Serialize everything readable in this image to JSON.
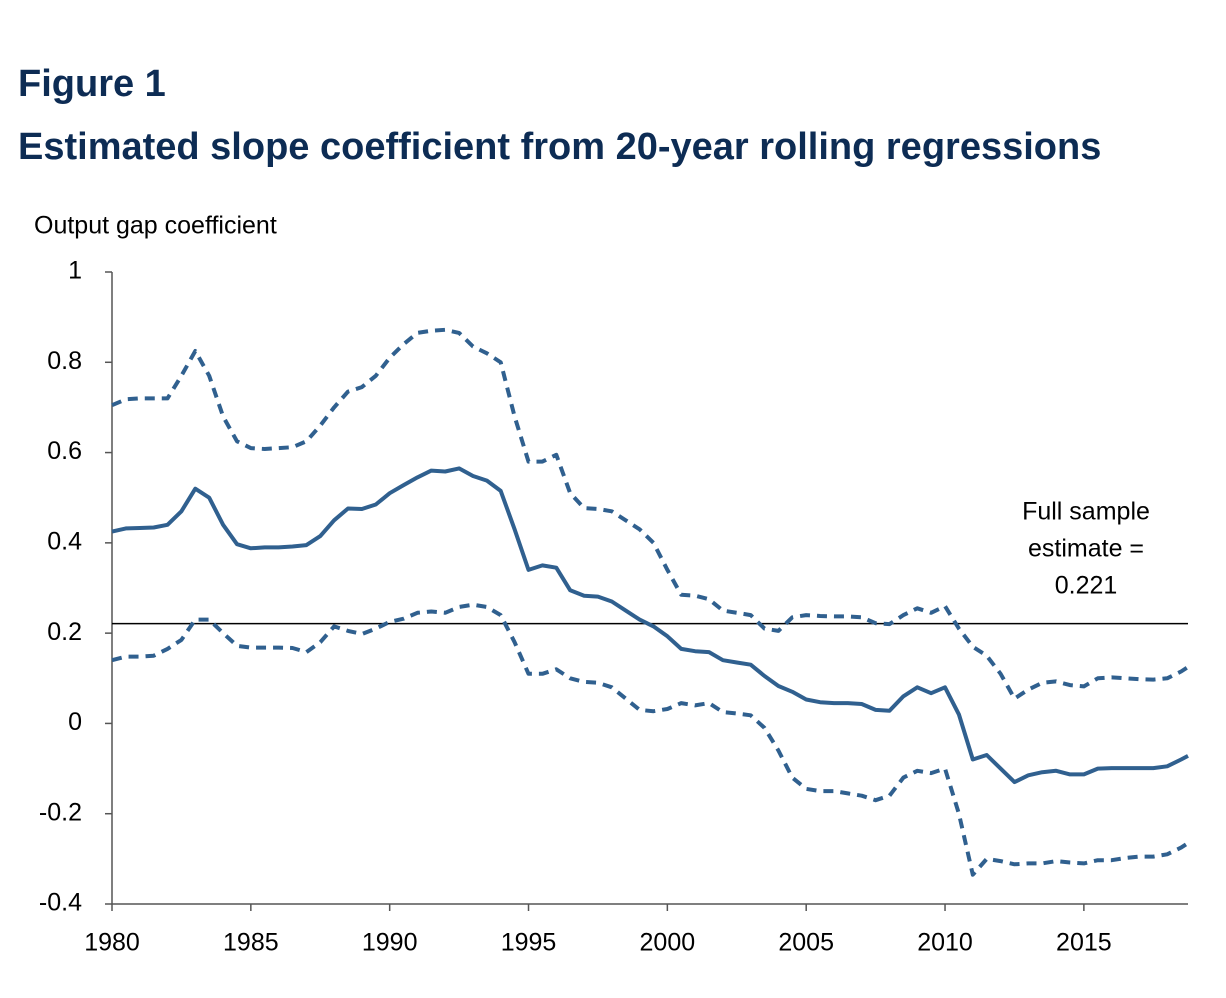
{
  "chart_data": {
    "type": "line",
    "title": "Figure 1",
    "subtitle": "Estimated slope coefficient from 20-year rolling regressions",
    "y_label": "Output gap coefficient",
    "x": [
      1980,
      1980.5,
      1981,
      1981.5,
      1982,
      1982.5,
      1983,
      1983.5,
      1984,
      1984.5,
      1985,
      1985.5,
      1986,
      1986.5,
      1987,
      1987.5,
      1988,
      1988.5,
      1989,
      1989.5,
      1990,
      1990.5,
      1991,
      1991.5,
      1992,
      1992.5,
      1993,
      1993.5,
      1994,
      1994.5,
      1995,
      1995.5,
      1996,
      1996.5,
      1997,
      1997.5,
      1998,
      1998.5,
      1999,
      1999.5,
      2000,
      2000.5,
      2001,
      2001.5,
      2002,
      2002.5,
      2003,
      2003.5,
      2004,
      2004.5,
      2005,
      2005.5,
      2006,
      2006.5,
      2007,
      2007.5,
      2008,
      2008.5,
      2009,
      2009.5,
      2010,
      2010.5,
      2011,
      2011.5,
      2012,
      2012.5,
      2013,
      2013.5,
      2014,
      2014.5,
      2015,
      2015.5,
      2016,
      2016.5,
      2017,
      2017.5,
      2018,
      2018.5,
      2018.75
    ],
    "series": [
      {
        "color": "#30608f",
        "style": "solid",
        "values": [
          0.425,
          0.432,
          0.433,
          0.434,
          0.44,
          0.47,
          0.52,
          0.5,
          0.44,
          0.397,
          0.388,
          0.39,
          0.39,
          0.392,
          0.395,
          0.415,
          0.45,
          0.476,
          0.475,
          0.485,
          0.51,
          0.528,
          0.545,
          0.56,
          0.558,
          0.565,
          0.548,
          0.538,
          0.515,
          0.43,
          0.34,
          0.35,
          0.345,
          0.295,
          0.283,
          0.281,
          0.27,
          0.25,
          0.23,
          0.215,
          0.193,
          0.165,
          0.16,
          0.158,
          0.14,
          0.135,
          0.13,
          0.105,
          0.083,
          0.07,
          0.053,
          0.047,
          0.045,
          0.045,
          0.043,
          0.03,
          0.028,
          0.06,
          0.08,
          0.067,
          0.08,
          0.02,
          -0.08,
          -0.07,
          -0.1,
          -0.13,
          -0.115,
          -0.108,
          -0.105,
          -0.113,
          -0.113,
          -0.1,
          -0.099,
          -0.099,
          -0.099,
          -0.099,
          -0.095,
          -0.08,
          -0.072
        ]
      },
      {
        "color": "#30608f",
        "style": "dashed",
        "values": [
          0.705,
          0.718,
          0.72,
          0.72,
          0.72,
          0.77,
          0.825,
          0.77,
          0.68,
          0.625,
          0.61,
          0.608,
          0.61,
          0.612,
          0.625,
          0.66,
          0.7,
          0.735,
          0.745,
          0.77,
          0.81,
          0.84,
          0.865,
          0.87,
          0.872,
          0.865,
          0.835,
          0.82,
          0.8,
          0.68,
          0.58,
          0.58,
          0.595,
          0.51,
          0.477,
          0.475,
          0.47,
          0.45,
          0.43,
          0.4,
          0.34,
          0.285,
          0.283,
          0.275,
          0.25,
          0.245,
          0.24,
          0.21,
          0.205,
          0.235,
          0.24,
          0.238,
          0.237,
          0.237,
          0.235,
          0.222,
          0.22,
          0.24,
          0.255,
          0.245,
          0.26,
          0.21,
          0.17,
          0.15,
          0.11,
          0.055,
          0.075,
          0.09,
          0.093,
          0.085,
          0.082,
          0.1,
          0.102,
          0.1,
          0.098,
          0.097,
          0.1,
          0.115,
          0.125
        ]
      },
      {
        "color": "#30608f",
        "style": "dashed",
        "values": [
          0.14,
          0.148,
          0.148,
          0.15,
          0.165,
          0.185,
          0.23,
          0.23,
          0.2,
          0.172,
          0.168,
          0.168,
          0.168,
          0.167,
          0.158,
          0.18,
          0.215,
          0.205,
          0.198,
          0.21,
          0.225,
          0.232,
          0.245,
          0.248,
          0.245,
          0.258,
          0.263,
          0.258,
          0.24,
          0.18,
          0.11,
          0.11,
          0.12,
          0.1,
          0.092,
          0.09,
          0.08,
          0.055,
          0.03,
          0.027,
          0.032,
          0.045,
          0.04,
          0.045,
          0.025,
          0.022,
          0.018,
          -0.01,
          -0.06,
          -0.12,
          -0.145,
          -0.15,
          -0.15,
          -0.155,
          -0.16,
          -0.17,
          -0.16,
          -0.12,
          -0.105,
          -0.11,
          -0.1,
          -0.2,
          -0.335,
          -0.3,
          -0.305,
          -0.312,
          -0.31,
          -0.31,
          -0.305,
          -0.308,
          -0.31,
          -0.303,
          -0.303,
          -0.298,
          -0.295,
          -0.295,
          -0.29,
          -0.275,
          -0.265
        ]
      }
    ],
    "reference_line": {
      "value": 0.221,
      "color": "#000000",
      "label": [
        "Full sample",
        "estimate =",
        "0.221"
      ]
    },
    "xlim": [
      1980,
      2018.75
    ],
    "xticks": [
      1980,
      1985,
      1990,
      1995,
      2000,
      2005,
      2010,
      2015
    ],
    "ylim": [
      -0.4,
      1
    ],
    "yticks": [
      -0.4,
      -0.2,
      0,
      0.2,
      0.4,
      0.6,
      0.8,
      1
    ],
    "grid": false
  }
}
